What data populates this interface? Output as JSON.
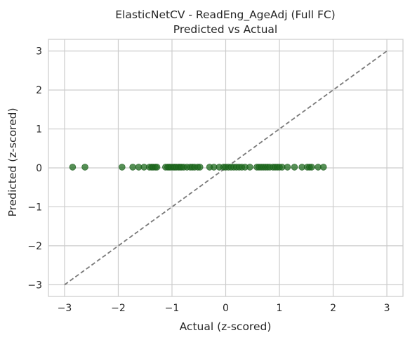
{
  "chart_data": {
    "type": "scatter",
    "title": "ElasticNetCV - ReadEng_AgeAdj (Full FC)",
    "subtitle": "Predicted vs Actual",
    "xlabel": "Actual (z-scored)",
    "ylabel": "Predicted (z-scored)",
    "xlim": [
      -3.3,
      3.3
    ],
    "ylim": [
      -3.3,
      3.3
    ],
    "xticks": [
      -3,
      -2,
      -1,
      0,
      1,
      2,
      3
    ],
    "yticks": [
      -3,
      -2,
      -1,
      0,
      1,
      2,
      3
    ],
    "x_tick_labels": [
      "−3",
      "−2",
      "−1",
      "0",
      "1",
      "2",
      "3"
    ],
    "y_tick_labels": [
      "−3",
      "−2",
      "−1",
      "0",
      "1",
      "2",
      "3"
    ],
    "grid": true,
    "point_color": "#1e6b1e",
    "reference_line": {
      "from": [
        -3,
        -3
      ],
      "to": [
        3,
        3
      ],
      "color": "#7a7a7a",
      "style": "dashed"
    },
    "points": {
      "x": [
        -2.85,
        -2.62,
        -1.93,
        -1.73,
        -1.62,
        -1.52,
        -1.42,
        -1.38,
        -1.35,
        -1.31,
        -1.28,
        -1.12,
        -1.08,
        -1.05,
        -1.02,
        -0.98,
        -0.95,
        -0.92,
        -0.88,
        -0.85,
        -0.82,
        -0.78,
        -0.72,
        -0.66,
        -0.62,
        -0.58,
        -0.52,
        -0.48,
        -0.3,
        -0.22,
        -0.12,
        -0.04,
        0.0,
        0.05,
        0.1,
        0.15,
        0.2,
        0.25,
        0.3,
        0.36,
        0.45,
        0.58,
        0.62,
        0.66,
        0.7,
        0.74,
        0.78,
        0.82,
        0.88,
        0.92,
        0.96,
        1.0,
        1.05,
        1.15,
        1.28,
        1.42,
        1.52,
        1.56,
        1.6,
        1.72,
        1.82
      ],
      "y": [
        0.02,
        0.02,
        0.02,
        0.02,
        0.02,
        0.02,
        0.02,
        0.02,
        0.02,
        0.02,
        0.02,
        0.02,
        0.02,
        0.02,
        0.02,
        0.02,
        0.02,
        0.02,
        0.02,
        0.02,
        0.02,
        0.02,
        0.02,
        0.02,
        0.02,
        0.02,
        0.02,
        0.02,
        0.02,
        0.02,
        0.02,
        0.02,
        0.02,
        0.02,
        0.02,
        0.02,
        0.02,
        0.02,
        0.02,
        0.02,
        0.02,
        0.02,
        0.02,
        0.02,
        0.02,
        0.02,
        0.02,
        0.02,
        0.02,
        0.02,
        0.02,
        0.02,
        0.02,
        0.02,
        0.02,
        0.02,
        0.02,
        0.02,
        0.02,
        0.02,
        0.02
      ]
    }
  }
}
